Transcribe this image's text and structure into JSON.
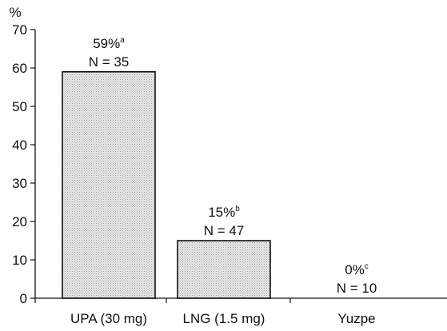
{
  "chart_data": {
    "type": "bar",
    "ylabel": "%",
    "ylim": [
      0,
      70
    ],
    "yticks": [
      0,
      10,
      20,
      30,
      40,
      50,
      60,
      70
    ],
    "categories": [
      "UPA (30 mg)",
      "LNG (1.5 mg)",
      "Yuzpe"
    ],
    "values": [
      59,
      15,
      0
    ],
    "value_labels": [
      "59%",
      "15%",
      "0%"
    ],
    "superscripts": [
      "a",
      "b",
      "c"
    ],
    "n_labels": [
      "N = 35",
      "N = 47",
      "N = 10"
    ],
    "grid": false,
    "bar_fill": "stippled light gray",
    "colors": {
      "bar_fill": "#ededed",
      "stipple": "#9a9a9a",
      "outline": "#111111"
    }
  }
}
